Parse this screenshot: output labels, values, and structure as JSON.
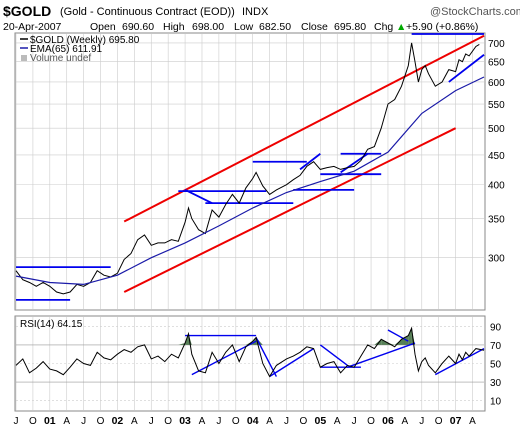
{
  "header": {
    "symbol": "$GOLD",
    "description": "(Gold - Continuous Contract (EOD))",
    "exchange": "INDX",
    "brand": "@StockCharts.com",
    "date": "20-Apr-2007",
    "open_label": "Open",
    "open": "690.60",
    "high_label": "High",
    "high": "698.00",
    "low_label": "Low",
    "low": "682.50",
    "close_label": "Close",
    "close": "695.80",
    "chg_label": "Chg",
    "chg": "+5.90 (+0.86%)",
    "chg_arrow": "▲"
  },
  "price_legend": {
    "series": "$GOLD (Weekly) 695.80",
    "ema": "EMA(65) 611.91",
    "volume": "Volume undef"
  },
  "rsi_legend": "RSI(14) 64.15",
  "colors": {
    "price_line": "#000000",
    "ema_line": "#1a1aa8",
    "trend_red": "#ee0000",
    "trend_blue": "#0000ee",
    "rsi_fill": "#3a6a3a",
    "grid": "#cccccc",
    "up_arrow": "#00aa00"
  },
  "chart_data": [
    {
      "type": "line",
      "title": "$GOLD (Gold - Continuous Contract (EOD))",
      "scale": "log",
      "ylim": [
        245,
        725
      ],
      "y_ticks": [
        300,
        350,
        400,
        450,
        500,
        550,
        600,
        650,
        700
      ],
      "x_range": [
        2000.5,
        2007.42
      ],
      "x_tick_labels": [
        "J",
        "O",
        "01",
        "A",
        "J",
        "O",
        "02",
        "A",
        "J",
        "O",
        "03",
        "A",
        "J",
        "O",
        "04",
        "A",
        "J",
        "O",
        "05",
        "A",
        "J",
        "O",
        "06",
        "A",
        "J",
        "O",
        "07",
        "A"
      ],
      "grid": true,
      "series": [
        {
          "name": "$GOLD (Weekly)",
          "points": [
            [
              2000.5,
              285
            ],
            [
              2000.6,
              275
            ],
            [
              2000.7,
              272
            ],
            [
              2000.8,
              268
            ],
            [
              2000.9,
              272
            ],
            [
              2001.0,
              268
            ],
            [
              2001.1,
              262
            ],
            [
              2001.2,
              260
            ],
            [
              2001.3,
              262
            ],
            [
              2001.4,
              270
            ],
            [
              2001.5,
              268
            ],
            [
              2001.6,
              272
            ],
            [
              2001.7,
              285
            ],
            [
              2001.8,
              280
            ],
            [
              2001.9,
              278
            ],
            [
              2002.0,
              282
            ],
            [
              2002.1,
              298
            ],
            [
              2002.2,
              305
            ],
            [
              2002.3,
              322
            ],
            [
              2002.4,
              328
            ],
            [
              2002.5,
              315
            ],
            [
              2002.6,
              318
            ],
            [
              2002.7,
              318
            ],
            [
              2002.8,
              322
            ],
            [
              2002.9,
              320
            ],
            [
              2003.0,
              345
            ],
            [
              2003.05,
              365
            ],
            [
              2003.1,
              350
            ],
            [
              2003.2,
              335
            ],
            [
              2003.3,
              330
            ],
            [
              2003.4,
              362
            ],
            [
              2003.5,
              352
            ],
            [
              2003.6,
              370
            ],
            [
              2003.7,
              385
            ],
            [
              2003.8,
              372
            ],
            [
              2003.9,
              395
            ],
            [
              2004.0,
              410
            ],
            [
              2004.05,
              420
            ],
            [
              2004.15,
              398
            ],
            [
              2004.25,
              385
            ],
            [
              2004.35,
              392
            ],
            [
              2004.5,
              400
            ],
            [
              2004.6,
              408
            ],
            [
              2004.7,
              415
            ],
            [
              2004.8,
              430
            ],
            [
              2004.9,
              438
            ],
            [
              2005.0,
              425
            ],
            [
              2005.1,
              428
            ],
            [
              2005.2,
              430
            ],
            [
              2005.3,
              425
            ],
            [
              2005.4,
              428
            ],
            [
              2005.5,
              430
            ],
            [
              2005.6,
              440
            ],
            [
              2005.7,
              460
            ],
            [
              2005.8,
              465
            ],
            [
              2005.9,
              500
            ],
            [
              2006.0,
              550
            ],
            [
              2006.1,
              560
            ],
            [
              2006.2,
              590
            ],
            [
              2006.3,
              640
            ],
            [
              2006.35,
              700
            ],
            [
              2006.4,
              650
            ],
            [
              2006.45,
              600
            ],
            [
              2006.5,
              630
            ],
            [
              2006.55,
              640
            ],
            [
              2006.6,
              620
            ],
            [
              2006.7,
              590
            ],
            [
              2006.8,
              600
            ],
            [
              2006.9,
              630
            ],
            [
              2007.0,
              625
            ],
            [
              2007.05,
              655
            ],
            [
              2007.1,
              650
            ],
            [
              2007.15,
              670
            ],
            [
              2007.2,
              665
            ],
            [
              2007.3,
              690
            ],
            [
              2007.35,
              695.8
            ]
          ]
        },
        {
          "name": "EMA(65)",
          "points": [
            [
              2000.5,
              279
            ],
            [
              2001.0,
              272
            ],
            [
              2001.5,
              270
            ],
            [
              2002.0,
              280
            ],
            [
              2002.5,
              300
            ],
            [
              2003.0,
              318
            ],
            [
              2003.5,
              340
            ],
            [
              2004.0,
              365
            ],
            [
              2004.5,
              388
            ],
            [
              2005.0,
              405
            ],
            [
              2005.5,
              422
            ],
            [
              2006.0,
              455
            ],
            [
              2006.5,
              530
            ],
            [
              2007.0,
              580
            ],
            [
              2007.42,
              611.91
            ]
          ]
        }
      ],
      "trendlines": [
        {
          "color": "red",
          "points": [
            [
              2002.1,
              346
            ],
            [
              2007.42,
              720
            ]
          ]
        },
        {
          "color": "red",
          "points": [
            [
              2002.1,
              262
            ],
            [
              2007.0,
              500
            ]
          ]
        },
        {
          "color": "blue",
          "points": [
            [
              2000.5,
              289
            ],
            [
              2001.9,
              289
            ]
          ]
        },
        {
          "color": "blue",
          "points": [
            [
              2000.5,
              254
            ],
            [
              2001.3,
              254
            ]
          ]
        },
        {
          "color": "blue",
          "points": [
            [
              2002.9,
              390
            ],
            [
              2004.2,
              390
            ]
          ]
        },
        {
          "color": "blue",
          "points": [
            [
              2004.0,
              438
            ],
            [
              2004.8,
              438
            ]
          ]
        },
        {
          "color": "blue",
          "points": [
            [
              2003.3,
              372
            ],
            [
              2004.6,
              372
            ]
          ]
        },
        {
          "color": "blue",
          "points": [
            [
              2004.6,
              392
            ],
            [
              2005.5,
              392
            ]
          ]
        },
        {
          "color": "blue",
          "points": [
            [
              2005.3,
              452
            ],
            [
              2005.9,
              452
            ]
          ]
        },
        {
          "color": "blue",
          "points": [
            [
              2005.0,
              417
            ],
            [
              2005.9,
              417
            ]
          ]
        },
        {
          "color": "blue",
          "points": [
            [
              2006.35,
              725
            ],
            [
              2007.42,
              725
            ]
          ]
        },
        {
          "color": "blue",
          "points": [
            [
              2003.0,
              392
            ],
            [
              2003.4,
              372
            ]
          ]
        },
        {
          "color": "blue",
          "points": [
            [
              2004.7,
              425
            ],
            [
              2005.0,
              452
            ]
          ]
        },
        {
          "color": "blue",
          "points": [
            [
              2005.3,
              420
            ],
            [
              2005.7,
              452
            ]
          ]
        },
        {
          "color": "blue",
          "points": [
            [
              2006.9,
              600
            ],
            [
              2007.42,
              668
            ]
          ]
        }
      ]
    },
    {
      "type": "line",
      "title": "RSI(14) 64.15",
      "ylim": [
        0,
        100
      ],
      "y_ticks": [
        10,
        30,
        50,
        70,
        90
      ],
      "x_range": [
        2000.5,
        2007.42
      ],
      "grid": true,
      "series": [
        {
          "name": "RSI(14)",
          "points": [
            [
              2000.5,
              48
            ],
            [
              2000.6,
              55
            ],
            [
              2000.7,
              40
            ],
            [
              2000.8,
              45
            ],
            [
              2000.9,
              52
            ],
            [
              2001.0,
              44
            ],
            [
              2001.1,
              42
            ],
            [
              2001.2,
              38
            ],
            [
              2001.3,
              46
            ],
            [
              2001.4,
              55
            ],
            [
              2001.5,
              50
            ],
            [
              2001.6,
              48
            ],
            [
              2001.7,
              62
            ],
            [
              2001.8,
              56
            ],
            [
              2001.9,
              54
            ],
            [
              2002.0,
              60
            ],
            [
              2002.1,
              65
            ],
            [
              2002.2,
              62
            ],
            [
              2002.3,
              68
            ],
            [
              2002.4,
              70
            ],
            [
              2002.5,
              55
            ],
            [
              2002.6,
              58
            ],
            [
              2002.7,
              52
            ],
            [
              2002.8,
              60
            ],
            [
              2002.9,
              56
            ],
            [
              2003.0,
              72
            ],
            [
              2003.05,
              82
            ],
            [
              2003.1,
              60
            ],
            [
              2003.2,
              42
            ],
            [
              2003.3,
              40
            ],
            [
              2003.4,
              62
            ],
            [
              2003.5,
              50
            ],
            [
              2003.6,
              62
            ],
            [
              2003.7,
              70
            ],
            [
              2003.8,
              52
            ],
            [
              2003.9,
              68
            ],
            [
              2004.0,
              74
            ],
            [
              2004.05,
              78
            ],
            [
              2004.15,
              50
            ],
            [
              2004.25,
              36
            ],
            [
              2004.35,
              48
            ],
            [
              2004.5,
              55
            ],
            [
              2004.6,
              58
            ],
            [
              2004.7,
              62
            ],
            [
              2004.8,
              68
            ],
            [
              2004.9,
              66
            ],
            [
              2005.0,
              46
            ],
            [
              2005.1,
              50
            ],
            [
              2005.2,
              52
            ],
            [
              2005.3,
              40
            ],
            [
              2005.4,
              48
            ],
            [
              2005.5,
              46
            ],
            [
              2005.6,
              58
            ],
            [
              2005.7,
              70
            ],
            [
              2005.8,
              66
            ],
            [
              2005.9,
              76
            ],
            [
              2006.0,
              72
            ],
            [
              2006.1,
              68
            ],
            [
              2006.2,
              76
            ],
            [
              2006.3,
              80
            ],
            [
              2006.35,
              88
            ],
            [
              2006.4,
              60
            ],
            [
              2006.45,
              42
            ],
            [
              2006.5,
              52
            ],
            [
              2006.55,
              56
            ],
            [
              2006.6,
              48
            ],
            [
              2006.7,
              40
            ],
            [
              2006.8,
              50
            ],
            [
              2006.9,
              58
            ],
            [
              2007.0,
              50
            ],
            [
              2007.05,
              60
            ],
            [
              2007.1,
              54
            ],
            [
              2007.15,
              62
            ],
            [
              2007.2,
              58
            ],
            [
              2007.3,
              66
            ],
            [
              2007.42,
              64.15
            ]
          ]
        }
      ],
      "trendlines": [
        {
          "color": "blue",
          "points": [
            [
              2003.0,
              80
            ],
            [
              2004.05,
              80
            ]
          ]
        },
        {
          "color": "blue",
          "points": [
            [
              2003.1,
              38
            ],
            [
              2004.05,
              74
            ]
          ]
        },
        {
          "color": "blue",
          "points": [
            [
              2004.05,
              78
            ],
            [
              2004.35,
              36
            ]
          ]
        },
        {
          "color": "blue",
          "points": [
            [
              2004.25,
              36
            ],
            [
              2004.9,
              66
            ]
          ]
        },
        {
          "color": "blue",
          "points": [
            [
              2005.0,
              46
            ],
            [
              2005.6,
              46
            ]
          ]
        },
        {
          "color": "blue",
          "points": [
            [
              2005.0,
              70
            ],
            [
              2005.4,
              48
            ]
          ]
        },
        {
          "color": "blue",
          "points": [
            [
              2005.4,
              46
            ],
            [
              2006.4,
              72
            ]
          ]
        },
        {
          "color": "blue",
          "points": [
            [
              2006.0,
              86
            ],
            [
              2006.3,
              74
            ]
          ]
        },
        {
          "color": "blue",
          "points": [
            [
              2006.7,
              38
            ],
            [
              2007.42,
              66
            ]
          ]
        }
      ]
    }
  ]
}
